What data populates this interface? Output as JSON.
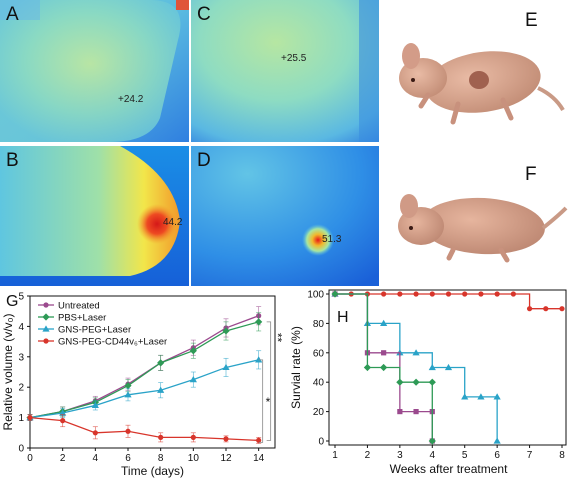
{
  "panels": {
    "a": {
      "letter": "A",
      "temp": "+24.2"
    },
    "b": {
      "letter": "B",
      "temp": "44.2"
    },
    "c": {
      "letter": "C",
      "temp": "+25.5"
    },
    "d": {
      "letter": "D",
      "temp": "51.3"
    },
    "e": {
      "letter": "E"
    },
    "f": {
      "letter": "F"
    }
  },
  "chart_data": [
    {
      "type": "line",
      "panel_letter": "G",
      "xlabel": "Time (days)",
      "ylabel": "Relative volume (v/v₀)",
      "xlim": [
        0,
        15
      ],
      "ylim": [
        0,
        5
      ],
      "xticks": [
        0,
        2,
        4,
        6,
        8,
        10,
        12,
        14
      ],
      "yticks": [
        0,
        1,
        2,
        3,
        4,
        5
      ],
      "x": [
        0,
        2,
        4,
        6,
        8,
        10,
        12,
        14
      ],
      "legend_position": "top-left",
      "significance": [
        "**",
        "*"
      ],
      "series": [
        {
          "name": "Untreated",
          "color": "#9b4a8e",
          "marker": "circle",
          "values": [
            1.0,
            1.2,
            1.55,
            2.1,
            2.8,
            3.3,
            3.95,
            4.35
          ],
          "errors": [
            0.1,
            0.15,
            0.15,
            0.2,
            0.25,
            0.25,
            0.3,
            0.3
          ]
        },
        {
          "name": "PBS+Laser",
          "color": "#2e9a56",
          "marker": "diamond",
          "values": [
            1.0,
            1.2,
            1.5,
            2.05,
            2.8,
            3.2,
            3.85,
            4.15
          ],
          "errors": [
            0.1,
            0.15,
            0.15,
            0.2,
            0.25,
            0.25,
            0.3,
            0.3
          ]
        },
        {
          "name": "GNS-PEG+Laser",
          "color": "#2aa3c8",
          "marker": "triangle",
          "values": [
            1.0,
            1.15,
            1.4,
            1.75,
            1.9,
            2.25,
            2.65,
            2.9
          ],
          "errors": [
            0.1,
            0.15,
            0.15,
            0.2,
            0.25,
            0.25,
            0.3,
            0.3
          ]
        },
        {
          "name": "GNS-PEG-CD44v₆+Laser",
          "color": "#d8352b",
          "marker": "circle",
          "values": [
            1.0,
            0.9,
            0.5,
            0.55,
            0.35,
            0.35,
            0.3,
            0.25
          ],
          "errors": [
            0.1,
            0.2,
            0.2,
            0.2,
            0.15,
            0.15,
            0.1,
            0.1
          ]
        }
      ]
    },
    {
      "type": "line",
      "step": true,
      "panel_letter": "H",
      "xlabel": "Weeks after treatment",
      "ylabel": "Survial rate (%)",
      "xlim": [
        1,
        8
      ],
      "ylim": [
        0,
        100
      ],
      "xticks": [
        1,
        2,
        3,
        4,
        5,
        6,
        7,
        8
      ],
      "yticks": [
        0,
        20,
        40,
        60,
        80,
        100
      ],
      "series": [
        {
          "color": "#d8352b",
          "marker": "circle",
          "x": [
            1,
            1.5,
            2,
            2.5,
            3,
            3.5,
            4,
            4.5,
            5,
            5.5,
            6,
            6.5,
            7,
            7.5,
            8
          ],
          "values": [
            100,
            100,
            100,
            100,
            100,
            100,
            100,
            100,
            100,
            100,
            100,
            100,
            90,
            90,
            90
          ]
        },
        {
          "color": "#2aa3c8",
          "marker": "triangle",
          "x": [
            1,
            2,
            2.5,
            3,
            3.5,
            4,
            4.5,
            5,
            5.5,
            6,
            6
          ],
          "values": [
            100,
            80,
            80,
            60,
            60,
            50,
            50,
            30,
            30,
            30,
            0
          ]
        },
        {
          "color": "#9b4a8e",
          "marker": "square",
          "x": [
            1,
            2,
            2.5,
            3,
            3.5,
            4,
            4
          ],
          "values": [
            100,
            60,
            60,
            20,
            20,
            20,
            0
          ]
        },
        {
          "color": "#2e9a56",
          "marker": "diamond",
          "x": [
            1,
            2,
            2.5,
            3,
            3.5,
            4,
            4
          ],
          "values": [
            100,
            50,
            50,
            40,
            40,
            40,
            0
          ]
        }
      ]
    }
  ]
}
